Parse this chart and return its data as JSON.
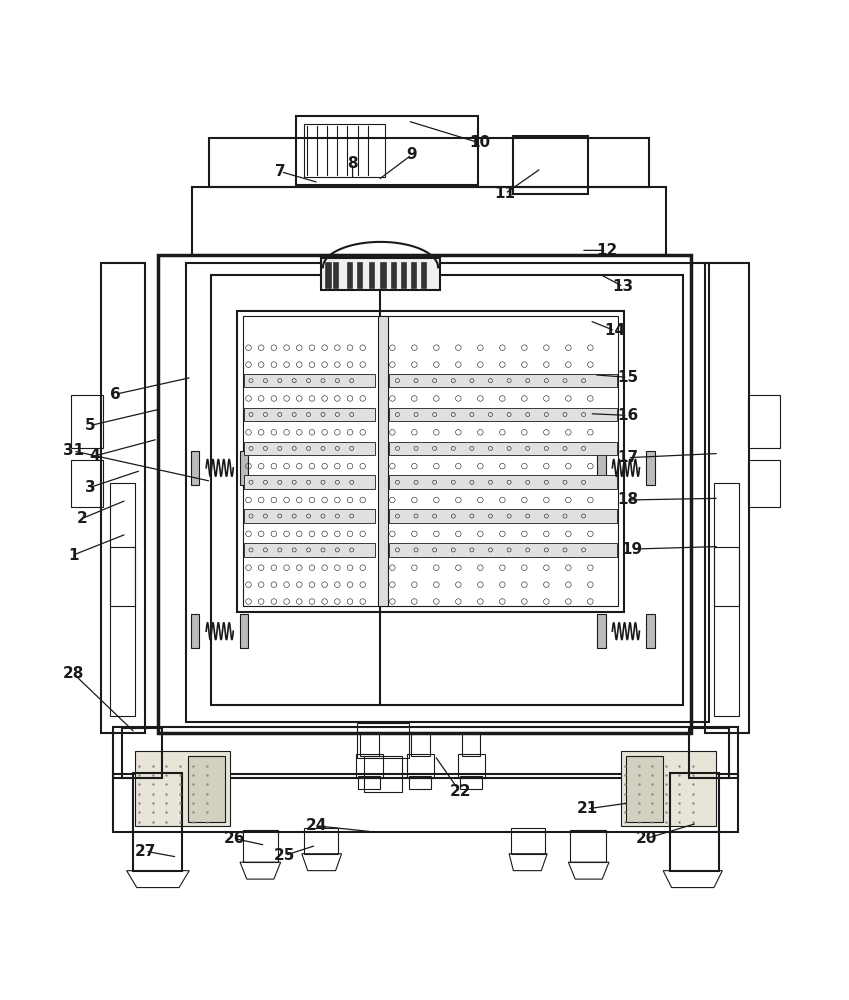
{
  "bg_color": "#ffffff",
  "line_color": "#1a1a1a",
  "lw_main": 1.5,
  "lw_thin": 0.8,
  "lw_thick": 2.5,
  "fig_width": 8.49,
  "fig_height": 10.0,
  "annotations": {
    "1": [
      0.085,
      0.435,
      0.148,
      0.46
    ],
    "2": [
      0.095,
      0.478,
      0.148,
      0.5
    ],
    "3": [
      0.105,
      0.515,
      0.165,
      0.535
    ],
    "4": [
      0.11,
      0.552,
      0.185,
      0.572
    ],
    "5": [
      0.105,
      0.588,
      0.19,
      0.608
    ],
    "6": [
      0.135,
      0.625,
      0.225,
      0.645
    ],
    "7": [
      0.33,
      0.888,
      0.375,
      0.875
    ],
    "8": [
      0.415,
      0.898,
      0.415,
      0.878
    ],
    "9": [
      0.485,
      0.908,
      0.445,
      0.878
    ],
    "10": [
      0.565,
      0.922,
      0.48,
      0.948
    ],
    "11": [
      0.595,
      0.862,
      0.638,
      0.892
    ],
    "12": [
      0.715,
      0.795,
      0.685,
      0.795
    ],
    "13": [
      0.735,
      0.752,
      0.705,
      0.768
    ],
    "14": [
      0.725,
      0.7,
      0.695,
      0.712
    ],
    "15": [
      0.74,
      0.645,
      0.7,
      0.648
    ],
    "16": [
      0.74,
      0.6,
      0.695,
      0.602
    ],
    "17": [
      0.74,
      0.55,
      0.848,
      0.555
    ],
    "18": [
      0.74,
      0.5,
      0.848,
      0.502
    ],
    "19": [
      0.745,
      0.442,
      0.848,
      0.445
    ],
    "20": [
      0.762,
      0.1,
      0.822,
      0.118
    ],
    "21": [
      0.692,
      0.135,
      0.742,
      0.142
    ],
    "22": [
      0.542,
      0.155,
      0.512,
      0.198
    ],
    "24": [
      0.372,
      0.115,
      0.438,
      0.108
    ],
    "25": [
      0.335,
      0.08,
      0.372,
      0.092
    ],
    "26": [
      0.275,
      0.1,
      0.312,
      0.092
    ],
    "27": [
      0.17,
      0.085,
      0.208,
      0.078
    ],
    "28": [
      0.085,
      0.295,
      0.158,
      0.225
    ],
    "31": [
      0.085,
      0.558,
      0.248,
      0.522
    ]
  }
}
